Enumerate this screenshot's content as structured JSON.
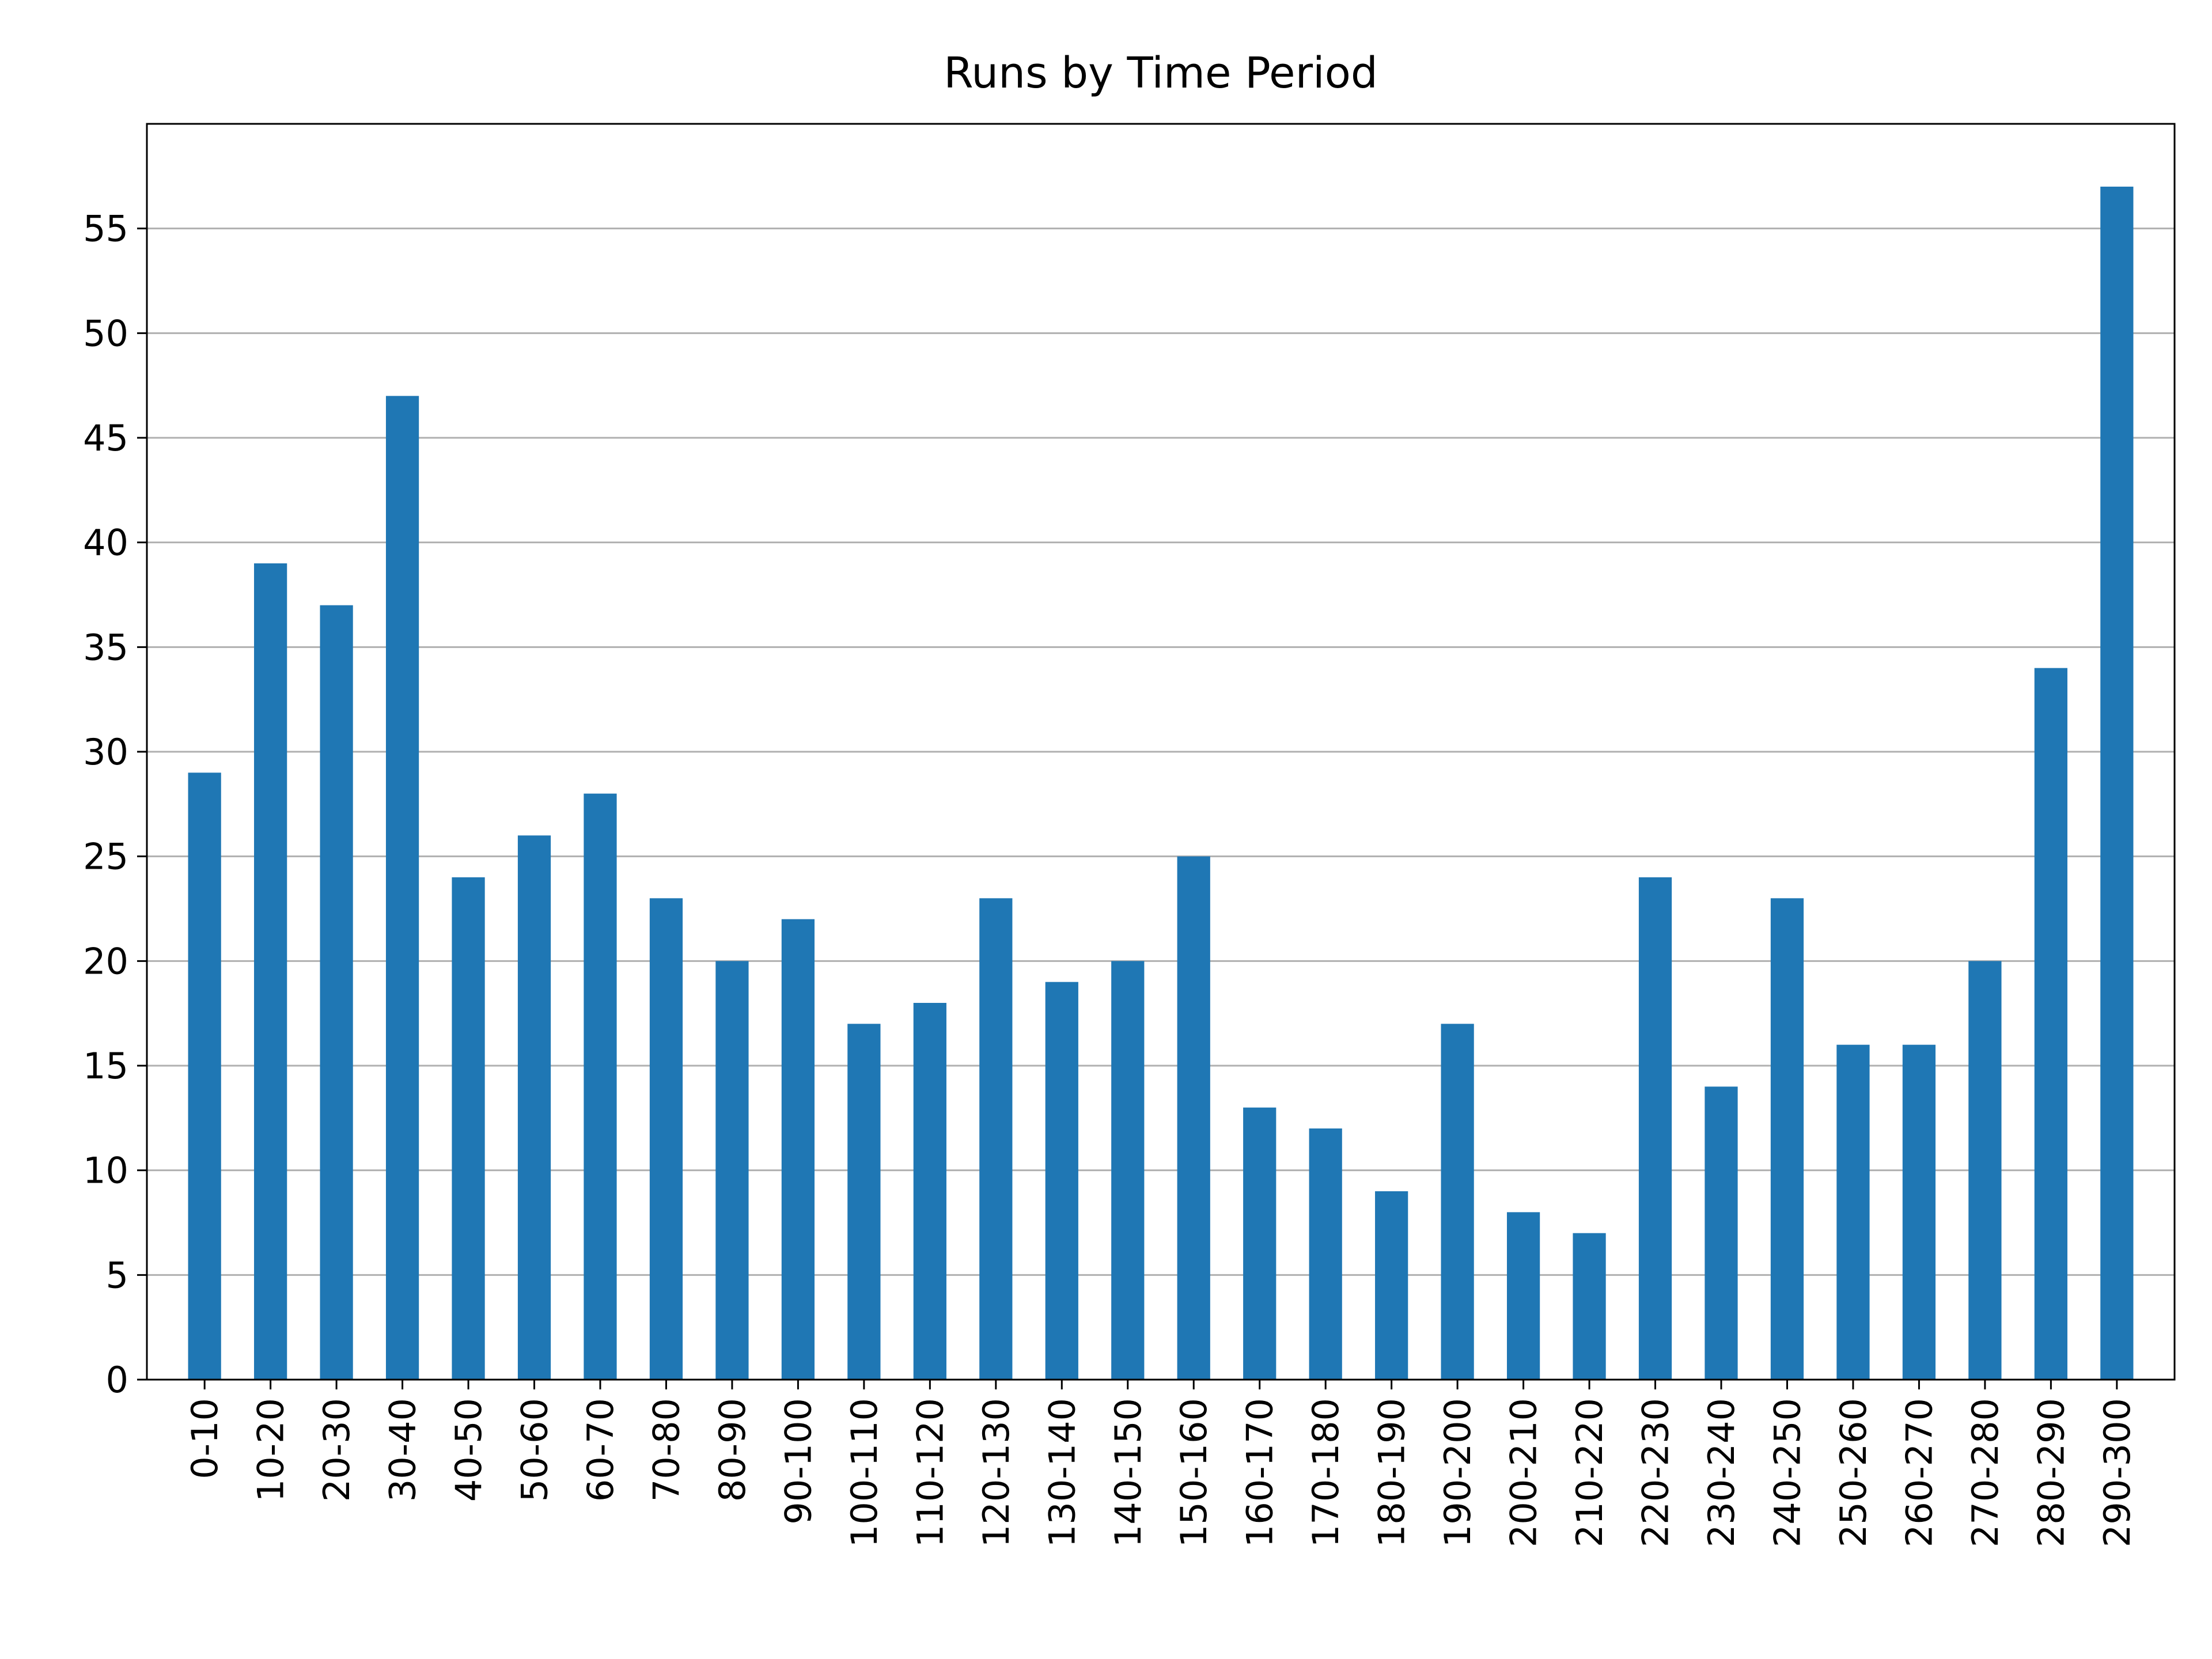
{
  "chart_data": {
    "type": "bar",
    "title": "Runs by Time Period",
    "xlabel": "",
    "ylabel": "",
    "categories": [
      "0-10",
      "10-20",
      "20-30",
      "30-40",
      "40-50",
      "50-60",
      "60-70",
      "70-80",
      "80-90",
      "90-100",
      "100-110",
      "110-120",
      "120-130",
      "130-140",
      "140-150",
      "150-160",
      "160-170",
      "170-180",
      "180-190",
      "190-200",
      "200-210",
      "210-220",
      "220-230",
      "230-240",
      "240-250",
      "250-260",
      "260-270",
      "270-280",
      "280-290",
      "290-300"
    ],
    "values": [
      29,
      39,
      37,
      47,
      24,
      26,
      28,
      23,
      20,
      22,
      17,
      18,
      23,
      19,
      20,
      25,
      13,
      12,
      9,
      17,
      8,
      7,
      24,
      14,
      23,
      16,
      16,
      20,
      34,
      57
    ],
    "ylim": [
      0,
      60
    ],
    "yticks": [
      0,
      5,
      10,
      15,
      20,
      25,
      30,
      35,
      40,
      45,
      50,
      55
    ],
    "grid": "y",
    "legend": "none",
    "bar_color": "#1f77b4",
    "grid_color": "#b0b0b0"
  }
}
